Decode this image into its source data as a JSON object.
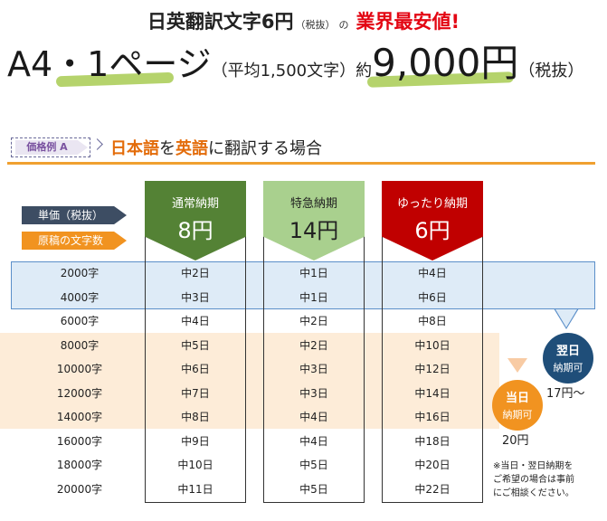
{
  "header": {
    "headline_main": "日英翻訳文字6円",
    "headline_tax": "（税抜）",
    "headline_no": "の",
    "headline_red": "業界最安値!",
    "price_a4": "A4・1ページ",
    "price_avg": "（平均1,500文字）",
    "price_approx": "約",
    "price_amount": "9,000円",
    "price_tax": "（税抜）"
  },
  "example": {
    "tag": "価格例 A",
    "title_1": "日本語",
    "title_2": "を",
    "title_3": "英語",
    "title_4": "に翻訳する場合"
  },
  "labels": {
    "unit_price": "単価（税抜）",
    "char_count": "原稿の文字数"
  },
  "columns": [
    {
      "name": "通常納期",
      "price": "8円",
      "color": "#548235"
    },
    {
      "name": "特急納期",
      "price": "14円",
      "color": "#a9d08e"
    },
    {
      "name": "ゆったり納期",
      "price": "6円",
      "color": "#c00000"
    }
  ],
  "rows": [
    {
      "chars": "2000字",
      "std": "中2日",
      "exp": "中1日",
      "rel": "中4日"
    },
    {
      "chars": "4000字",
      "std": "中3日",
      "exp": "中1日",
      "rel": "中6日"
    },
    {
      "chars": "6000字",
      "std": "中4日",
      "exp": "中2日",
      "rel": "中8日"
    },
    {
      "chars": "8000字",
      "std": "中5日",
      "exp": "中2日",
      "rel": "中10日"
    },
    {
      "chars": "10000字",
      "std": "中6日",
      "exp": "中3日",
      "rel": "中12日"
    },
    {
      "chars": "12000字",
      "std": "中7日",
      "exp": "中3日",
      "rel": "中14日"
    },
    {
      "chars": "14000字",
      "std": "中8日",
      "exp": "中4日",
      "rel": "中16日"
    },
    {
      "chars": "16000字",
      "std": "中9日",
      "exp": "中4日",
      "rel": "中18日"
    },
    {
      "chars": "18000字",
      "std": "中10日",
      "exp": "中5日",
      "rel": "中20日"
    },
    {
      "chars": "20000字",
      "std": "中11日",
      "exp": "中5日",
      "rel": "中22日"
    }
  ],
  "callouts": {
    "next_day_l1": "翌日",
    "next_day_l2": "納期可",
    "next_day_price": "17円〜",
    "same_day_l1": "当日",
    "same_day_l2": "納期可",
    "same_day_price": "20円",
    "note_lines": [
      "※当日・翌日納期を",
      "ご希望の場合は事前",
      "にご相談ください。"
    ]
  }
}
